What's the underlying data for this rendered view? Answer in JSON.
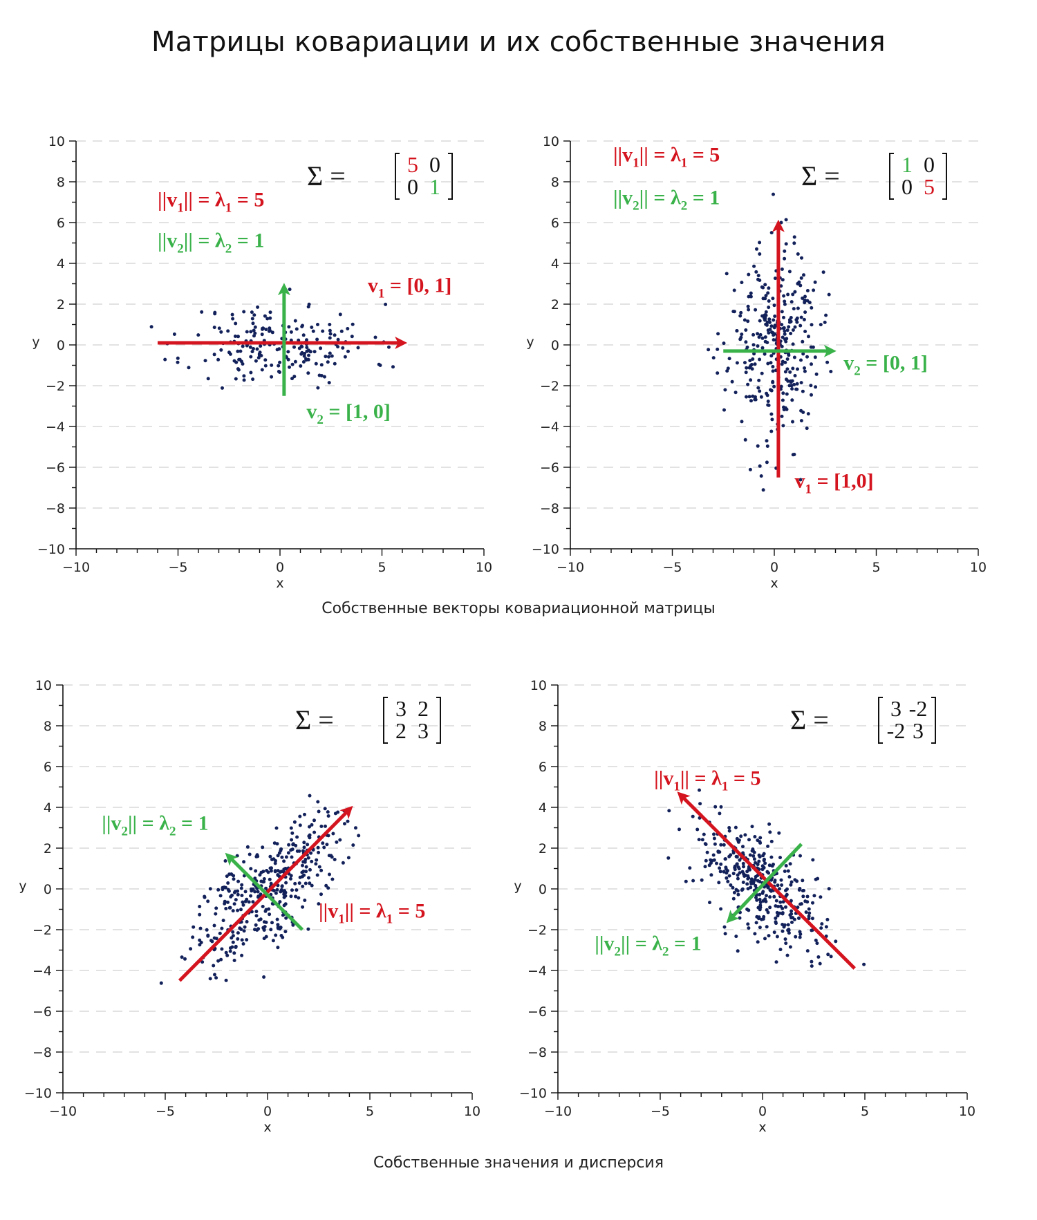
{
  "title": "Матрицы ковариации и их собственные значения",
  "captions": {
    "top": "Собственные векторы ковариационной матрицы",
    "bottom": "Собственные значения и дисперсия"
  },
  "colors": {
    "red": "#d4141e",
    "green": "#3ab24a",
    "points": "#13215a"
  },
  "chart_data": [
    {
      "type": "scatter",
      "xlabel": "x",
      "ylabel": "y",
      "xlim": [
        -10,
        10
      ],
      "ylim": [
        -10,
        10
      ],
      "xticks": [
        -10,
        -5,
        0,
        5,
        10
      ],
      "yticks": [
        -10,
        -8,
        -6,
        -4,
        -2,
        0,
        2,
        4,
        6,
        8,
        10
      ],
      "grid": "horizontal dashed",
      "covariance": [
        [
          "5",
          "0"
        ],
        [
          "0",
          "1"
        ]
      ],
      "matrix_colors": [
        [
          "red",
          "black"
        ],
        [
          "black",
          "green"
        ]
      ],
      "seed": 11,
      "n_points": 200,
      "spread": [
        2.236,
        1.0,
        0
      ],
      "vectors": [
        {
          "color": "red",
          "from": [
            -6,
            0.1
          ],
          "to": [
            6,
            0.1
          ]
        },
        {
          "color": "green",
          "from": [
            0.2,
            -2.5
          ],
          "to": [
            0.2,
            2.8
          ]
        }
      ],
      "annotations": [
        {
          "parts": [
            "||v",
            "1",
            "|| = λ",
            "1",
            " = 5"
          ],
          "color": "red",
          "x": -6,
          "y": 6.8
        },
        {
          "parts": [
            "||v",
            "2",
            "|| = λ",
            "2",
            " = 1"
          ],
          "color": "green",
          "x": -6,
          "y": 4.8
        },
        {
          "parts": [
            "v",
            "1",
            " = [0, 1]",
            "",
            ""
          ],
          "color": "red",
          "x": 4.3,
          "y": 2.6
        },
        {
          "parts": [
            "v",
            "2",
            " = [1, 0]",
            "",
            ""
          ],
          "color": "green",
          "x": 1.3,
          "y": -3.6
        }
      ]
    },
    {
      "type": "scatter",
      "xlabel": "x",
      "ylabel": "y",
      "xlim": [
        -10,
        10
      ],
      "ylim": [
        -10,
        10
      ],
      "xticks": [
        -10,
        -5,
        0,
        5,
        10
      ],
      "yticks": [
        -10,
        -8,
        -6,
        -4,
        -2,
        0,
        2,
        4,
        6,
        8,
        10
      ],
      "grid": "horizontal dashed",
      "covariance": [
        [
          "1",
          "0"
        ],
        [
          "0",
          "5"
        ]
      ],
      "matrix_colors": [
        [
          "green",
          "black"
        ],
        [
          "black",
          "red"
        ]
      ],
      "seed": 23,
      "n_points": 330,
      "spread": [
        1.1,
        2.4,
        0
      ],
      "vectors": [
        {
          "color": "red",
          "from": [
            0.2,
            -6.5
          ],
          "to": [
            0.2,
            5.9
          ]
        },
        {
          "color": "green",
          "from": [
            -2.5,
            -0.3
          ],
          "to": [
            2.8,
            -0.3
          ]
        }
      ],
      "annotations": [
        {
          "parts": [
            "||v",
            "1",
            "|| = λ",
            "1",
            " = 5"
          ],
          "color": "red",
          "x": -7.9,
          "y": 9.0
        },
        {
          "parts": [
            "||v",
            "2",
            "|| = λ",
            "2",
            " = 1"
          ],
          "color": "green",
          "x": -7.9,
          "y": 6.9
        },
        {
          "parts": [
            "v",
            "2",
            " = [0, 1]",
            "",
            ""
          ],
          "color": "green",
          "x": 3.4,
          "y": -1.2
        },
        {
          "parts": [
            "v",
            "1",
            " = [1,0]",
            "",
            ""
          ],
          "color": "red",
          "x": 1.0,
          "y": -7.0
        }
      ]
    },
    {
      "type": "scatter",
      "xlabel": "x",
      "ylabel": "y",
      "xlim": [
        -10,
        10
      ],
      "ylim": [
        -10,
        10
      ],
      "xticks": [
        -10,
        -5,
        0,
        5,
        10
      ],
      "yticks": [
        -10,
        -8,
        -6,
        -4,
        -2,
        0,
        2,
        4,
        6,
        8,
        10
      ],
      "grid": "horizontal dashed",
      "covariance": [
        [
          "3",
          "2"
        ],
        [
          "2",
          "3"
        ]
      ],
      "matrix_colors": [
        [
          "black",
          "black"
        ],
        [
          "black",
          "black"
        ]
      ],
      "seed": 37,
      "n_points": 380,
      "spread": [
        2.236,
        1.0,
        45
      ],
      "vectors": [
        {
          "color": "red",
          "from": [
            -4.3,
            -4.5
          ],
          "to": [
            4.0,
            3.9
          ]
        },
        {
          "color": "green",
          "from": [
            1.7,
            -2.0
          ],
          "to": [
            -1.9,
            1.6
          ]
        }
      ],
      "annotations": [
        {
          "parts": [
            "||v",
            "2",
            "|| = λ",
            "2",
            " = 1"
          ],
          "color": "green",
          "x": -8.1,
          "y": 2.9
        },
        {
          "parts": [
            "||v",
            "1",
            "|| = λ",
            "1",
            " = 5"
          ],
          "color": "red",
          "x": 2.5,
          "y": -1.4
        }
      ]
    },
    {
      "type": "scatter",
      "xlabel": "x",
      "ylabel": "y",
      "xlim": [
        -10,
        10
      ],
      "ylim": [
        -10,
        10
      ],
      "xticks": [
        -10,
        -5,
        0,
        5,
        10
      ],
      "yticks": [
        -10,
        -8,
        -6,
        -4,
        -2,
        0,
        2,
        4,
        6,
        8,
        10
      ],
      "grid": "horizontal dashed",
      "covariance": [
        [
          "3",
          "-2"
        ],
        [
          "-2",
          "3"
        ]
      ],
      "matrix_colors": [
        [
          "black",
          "black"
        ],
        [
          "black",
          "black"
        ]
      ],
      "seed": 53,
      "n_points": 380,
      "spread": [
        2.236,
        1.0,
        -45
      ],
      "vectors": [
        {
          "color": "red",
          "from": [
            4.5,
            -3.9
          ],
          "to": [
            -4.0,
            4.6
          ]
        },
        {
          "color": "green",
          "from": [
            1.9,
            2.2
          ],
          "to": [
            -1.6,
            -1.5
          ]
        }
      ],
      "annotations": [
        {
          "parts": [
            "||v",
            "1",
            "|| = λ",
            "1",
            " = 5"
          ],
          "color": "red",
          "x": -5.3,
          "y": 5.1
        },
        {
          "parts": [
            "||v",
            "2",
            "|| = λ",
            "2",
            " = 1"
          ],
          "color": "green",
          "x": -8.2,
          "y": -3.0
        }
      ]
    }
  ]
}
